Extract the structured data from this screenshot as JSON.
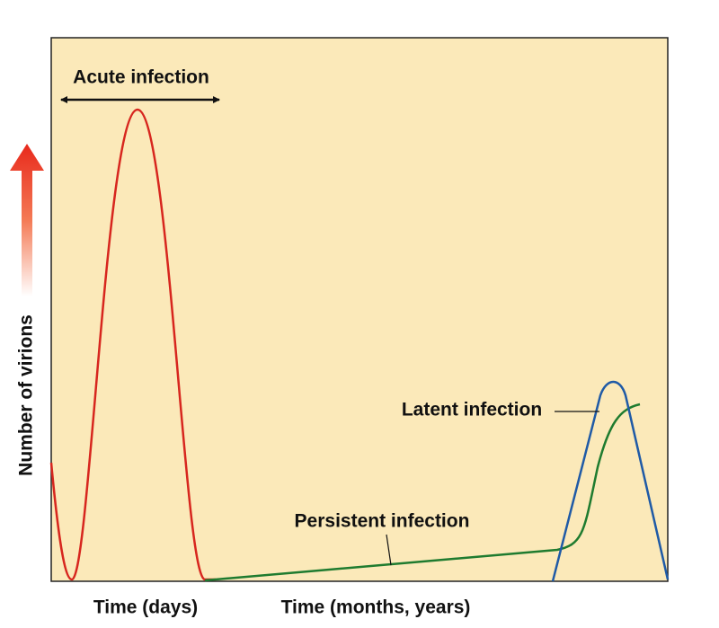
{
  "title": "Acute infection",
  "y_axis_label": "Number of virions",
  "x_axis_labels": [
    "Time (days)",
    "Time (months, years)"
  ],
  "annotations": [
    "Latent infection",
    "Persistent infection"
  ]
}
